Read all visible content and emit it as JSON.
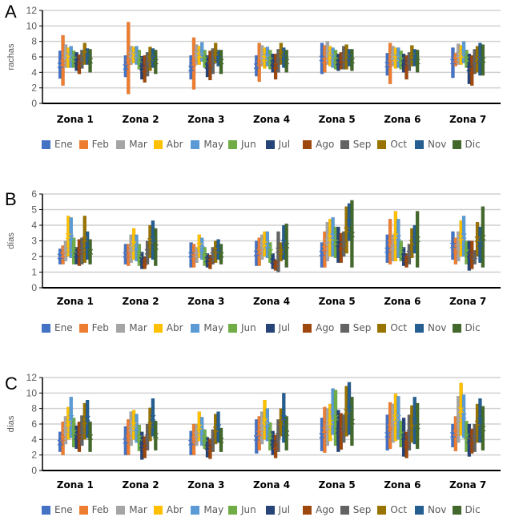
{
  "months": [
    "Ene",
    "Feb",
    "Mar",
    "Abr",
    "May",
    "Jun",
    "Jul",
    "Ago",
    "Sep",
    "Oct",
    "Nov",
    "Dic"
  ],
  "month_colors": [
    "#4472C4",
    "#ED7D31",
    "#A5A5A5",
    "#FFC000",
    "#5B9BD5",
    "#70AD47",
    "#264478",
    "#9E480E",
    "#636363",
    "#997300",
    "#255E91",
    "#43682B"
  ],
  "chart_data": [
    {
      "type": "bar",
      "subtype": "floating-range-with-mean",
      "panel_label": "A",
      "ylabel": "rachas",
      "ylim": [
        0,
        12
      ],
      "yticks": [
        0,
        2,
        4,
        6,
        8,
        10,
        12
      ],
      "grid": true,
      "legend_position": "bottom",
      "categories": [
        "Zona 1",
        "Zona 2",
        "Zona 3",
        "Zona 4",
        "Zona 5",
        "Zona 6",
        "Zona 7"
      ],
      "series": [
        {
          "name": "Ene",
          "min": [
            3.2,
            3.4,
            3.1,
            3.5,
            3.8,
            3.6,
            3.3
          ],
          "max": [
            6.8,
            6.2,
            6.2,
            6.2,
            7.8,
            6.5,
            7.2
          ],
          "mean": [
            4.9,
            4.7,
            4.5,
            4.8,
            5.8,
            5.0,
            5.4
          ]
        },
        {
          "name": "Feb",
          "min": [
            2.3,
            1.2,
            1.8,
            2.8,
            4.0,
            2.5,
            4.8
          ],
          "max": [
            8.8,
            10.5,
            8.5,
            7.8,
            7.5,
            7.8,
            6.5
          ],
          "mean": [
            5.2,
            5.3,
            5.2,
            5.2,
            5.5,
            5.2,
            5.6
          ]
        },
        {
          "name": "Mar",
          "min": [
            4.6,
            5.0,
            5.0,
            4.8,
            5.0,
            4.8,
            5.0
          ],
          "max": [
            7.6,
            7.4,
            7.6,
            7.5,
            8.0,
            7.4,
            7.7
          ],
          "mean": [
            6.2,
            6.3,
            6.4,
            6.1,
            6.5,
            6.0,
            6.3
          ]
        },
        {
          "name": "Abr",
          "min": [
            4.6,
            5.2,
            5.0,
            4.5,
            4.8,
            4.5,
            5.0
          ],
          "max": [
            7.2,
            7.3,
            7.4,
            7.2,
            7.4,
            7.2,
            7.5
          ],
          "mean": [
            5.9,
            6.2,
            6.2,
            5.8,
            6.0,
            5.8,
            6.2
          ]
        },
        {
          "name": "May",
          "min": [
            4.6,
            5.0,
            5.4,
            4.8,
            4.6,
            4.6,
            5.2
          ],
          "max": [
            7.4,
            7.4,
            7.9,
            7.3,
            7.2,
            7.2,
            8.0
          ],
          "mean": [
            6.0,
            6.2,
            6.6,
            6.0,
            5.9,
            5.9,
            6.6
          ]
        },
        {
          "name": "Jun",
          "min": [
            4.6,
            4.4,
            4.6,
            4.4,
            4.4,
            4.4,
            4.6
          ],
          "max": [
            6.8,
            6.9,
            6.9,
            6.9,
            6.9,
            6.8,
            6.9
          ],
          "mean": [
            5.7,
            5.6,
            5.7,
            5.6,
            5.6,
            5.6,
            5.7
          ]
        },
        {
          "name": "Jul",
          "min": [
            4.2,
            3.1,
            3.4,
            4.0,
            4.2,
            4.0,
            2.5
          ],
          "max": [
            6.6,
            6.1,
            6.2,
            6.4,
            6.4,
            6.4,
            6.4
          ],
          "mean": [
            5.4,
            4.6,
            4.8,
            5.2,
            5.3,
            5.2,
            4.5
          ]
        },
        {
          "name": "Ago",
          "min": [
            3.8,
            2.7,
            3.0,
            3.1,
            4.4,
            3.1,
            2.3
          ],
          "max": [
            6.3,
            6.2,
            6.8,
            6.4,
            6.6,
            6.2,
            6.2
          ],
          "mean": [
            5.0,
            4.4,
            4.9,
            4.8,
            5.5,
            4.6,
            4.2
          ]
        },
        {
          "name": "Sep",
          "min": [
            4.5,
            3.5,
            3.8,
            4.0,
            4.4,
            4.2,
            3.8
          ],
          "max": [
            6.9,
            6.6,
            7.1,
            7.0,
            7.4,
            6.6,
            7.0
          ],
          "mean": [
            5.7,
            5.0,
            5.4,
            5.5,
            5.9,
            5.4,
            5.4
          ]
        },
        {
          "name": "Oct",
          "min": [
            5.0,
            4.2,
            5.2,
            5.0,
            4.4,
            4.8,
            4.0
          ],
          "max": [
            7.8,
            7.3,
            7.8,
            7.8,
            7.6,
            7.5,
            7.4
          ],
          "mean": [
            6.4,
            5.8,
            6.5,
            6.4,
            6.0,
            6.1,
            5.7
          ]
        },
        {
          "name": "Nov",
          "min": [
            5.0,
            4.6,
            4.8,
            4.6,
            4.8,
            4.8,
            3.6
          ],
          "max": [
            7.1,
            7.1,
            6.9,
            7.2,
            7.0,
            7.0,
            7.8
          ],
          "mean": [
            6.0,
            5.8,
            5.8,
            5.9,
            5.9,
            5.9,
            5.7
          ]
        },
        {
          "name": "Dic",
          "min": [
            4.0,
            3.8,
            3.8,
            4.0,
            4.2,
            4.0,
            3.6
          ],
          "max": [
            7.0,
            6.9,
            6.9,
            6.9,
            7.0,
            6.9,
            7.6
          ],
          "mean": [
            5.5,
            5.4,
            5.4,
            5.4,
            5.5,
            5.4,
            5.6
          ]
        }
      ]
    },
    {
      "type": "bar",
      "subtype": "floating-range-with-mean",
      "panel_label": "B",
      "ylabel": "días",
      "ylim": [
        0,
        6
      ],
      "yticks": [
        0,
        1,
        2,
        3,
        4,
        5,
        6
      ],
      "grid": true,
      "legend_position": "bottom",
      "categories": [
        "Zona 1",
        "Zona 2",
        "Zona 3",
        "Zona 4",
        "Zona 5",
        "Zona 6",
        "Zona 7"
      ],
      "series": [
        {
          "name": "Ene",
          "min": [
            1.5,
            1.5,
            1.3,
            1.4,
            1.3,
            1.6,
            1.8
          ],
          "max": [
            2.5,
            2.8,
            2.9,
            3.0,
            2.9,
            3.4,
            3.6
          ],
          "mean": [
            2.0,
            2.1,
            2.1,
            2.2,
            2.2,
            2.4,
            2.7
          ]
        },
        {
          "name": "Feb",
          "min": [
            1.5,
            1.4,
            1.3,
            1.4,
            1.3,
            1.5,
            1.5
          ],
          "max": [
            2.7,
            2.8,
            2.8,
            3.2,
            3.6,
            4.4,
            3.2
          ],
          "mean": [
            2.1,
            2.1,
            2.0,
            2.3,
            2.5,
            2.9,
            2.4
          ]
        },
        {
          "name": "Mar",
          "min": [
            1.7,
            1.6,
            1.6,
            1.8,
            1.7,
            1.7,
            1.7
          ],
          "max": [
            3.0,
            3.4,
            2.6,
            3.4,
            4.2,
            3.4,
            3.6
          ],
          "mean": [
            2.4,
            2.5,
            2.1,
            2.6,
            3.0,
            2.6,
            2.6
          ]
        },
        {
          "name": "Abr",
          "min": [
            2.0,
            1.8,
            1.9,
            2.0,
            2.0,
            1.7,
            2.0
          ],
          "max": [
            4.6,
            3.8,
            3.4,
            3.6,
            4.4,
            4.9,
            4.3
          ],
          "mean": [
            3.3,
            2.8,
            2.7,
            2.8,
            3.2,
            3.3,
            3.2
          ]
        },
        {
          "name": "May",
          "min": [
            1.9,
            1.7,
            1.8,
            1.9,
            2.0,
            1.9,
            2.0
          ],
          "max": [
            4.5,
            3.4,
            3.2,
            3.6,
            4.5,
            4.4,
            4.6
          ],
          "mean": [
            3.2,
            2.6,
            2.5,
            2.7,
            3.3,
            3.2,
            3.3
          ]
        },
        {
          "name": "Jun",
          "min": [
            1.5,
            1.4,
            1.4,
            1.6,
            1.9,
            1.7,
            1.5
          ],
          "max": [
            3.2,
            2.8,
            2.6,
            2.9,
            3.9,
            3.0,
            3.0
          ],
          "mean": [
            2.4,
            2.1,
            2.0,
            2.3,
            2.9,
            2.4,
            2.3
          ]
        },
        {
          "name": "Jul",
          "min": [
            1.5,
            1.2,
            1.3,
            1.2,
            1.6,
            1.4,
            1.1
          ],
          "max": [
            2.6,
            2.3,
            2.2,
            2.2,
            3.9,
            2.6,
            3.0
          ],
          "mean": [
            2.1,
            1.8,
            1.8,
            1.7,
            2.8,
            2.0,
            2.1
          ]
        },
        {
          "name": "Ago",
          "min": [
            1.4,
            1.2,
            1.2,
            1.1,
            1.6,
            1.3,
            1.2
          ],
          "max": [
            3.1,
            2.0,
            2.1,
            1.8,
            3.5,
            2.2,
            3.0
          ],
          "mean": [
            2.3,
            1.6,
            1.7,
            1.5,
            2.6,
            1.8,
            2.1
          ]
        },
        {
          "name": "Sep",
          "min": [
            1.5,
            1.5,
            1.5,
            1.0,
            2.0,
            1.5,
            1.5
          ],
          "max": [
            3.2,
            3.0,
            2.6,
            3.6,
            3.6,
            2.8,
            2.4
          ],
          "mean": [
            2.4,
            2.3,
            2.1,
            2.4,
            2.8,
            2.2,
            2.0
          ]
        },
        {
          "name": "Oct",
          "min": [
            1.6,
            1.9,
            1.6,
            1.7,
            2.2,
            1.9,
            2.0
          ],
          "max": [
            4.6,
            4.0,
            3.0,
            2.9,
            5.2,
            3.8,
            4.2
          ],
          "mean": [
            3.1,
            3.0,
            2.4,
            2.3,
            3.7,
            2.9,
            3.1
          ]
        },
        {
          "name": "Nov",
          "min": [
            1.8,
            1.8,
            1.8,
            1.8,
            3.0,
            2.2,
            1.6
          ],
          "max": [
            3.6,
            4.3,
            3.1,
            4.0,
            5.4,
            4.0,
            3.9
          ],
          "mean": [
            2.7,
            3.1,
            2.5,
            2.9,
            4.2,
            3.1,
            2.8
          ]
        },
        {
          "name": "Dic",
          "min": [
            1.5,
            1.4,
            1.5,
            1.3,
            1.3,
            1.3,
            1.3
          ],
          "max": [
            3.1,
            3.8,
            2.8,
            4.1,
            5.6,
            4.9,
            5.2
          ],
          "mean": [
            2.3,
            2.6,
            2.1,
            2.7,
            3.4,
            3.1,
            3.2
          ]
        }
      ]
    },
    {
      "type": "bar",
      "subtype": "floating-range-with-mean",
      "panel_label": "C",
      "ylabel": "días",
      "ylim": [
        0,
        12
      ],
      "yticks": [
        0,
        2,
        4,
        6,
        8,
        10,
        12
      ],
      "grid": true,
      "legend_position": "bottom",
      "categories": [
        "Zona 1",
        "Zona 2",
        "Zona 3",
        "Zona 4",
        "Zona 5",
        "Zona 6",
        "Zona 7"
      ],
      "series": [
        {
          "name": "Ene",
          "min": [
            2.4,
            2.0,
            2.0,
            2.2,
            2.5,
            2.6,
            3.0
          ],
          "max": [
            5.0,
            5.7,
            5.1,
            6.6,
            6.8,
            7.2,
            6.0
          ],
          "mean": [
            3.6,
            3.8,
            3.6,
            4.2,
            4.5,
            4.6,
            4.6
          ]
        },
        {
          "name": "Feb",
          "min": [
            2.0,
            2.0,
            2.0,
            2.6,
            2.3,
            2.8,
            2.5
          ],
          "max": [
            6.3,
            6.6,
            6.0,
            7.0,
            8.2,
            8.8,
            7.0
          ],
          "mean": [
            4.1,
            4.2,
            4.0,
            4.8,
            5.2,
            5.6,
            4.8
          ]
        },
        {
          "name": "Mar",
          "min": [
            3.4,
            3.2,
            3.2,
            3.4,
            3.2,
            3.6,
            3.6
          ],
          "max": [
            7.0,
            7.6,
            6.0,
            7.6,
            8.0,
            8.6,
            9.6
          ],
          "mean": [
            5.2,
            5.4,
            4.6,
            5.5,
            5.6,
            6.1,
            6.6
          ]
        },
        {
          "name": "Abr",
          "min": [
            4.0,
            4.0,
            3.8,
            4.0,
            3.8,
            3.8,
            4.5
          ],
          "max": [
            8.2,
            7.8,
            7.6,
            9.1,
            8.6,
            9.9,
            11.3
          ],
          "mean": [
            6.1,
            5.9,
            5.6,
            6.4,
            6.2,
            6.8,
            7.8
          ]
        },
        {
          "name": "May",
          "min": [
            4.2,
            3.6,
            3.2,
            3.8,
            4.6,
            4.0,
            4.2
          ],
          "max": [
            9.5,
            7.3,
            6.9,
            8.0,
            10.6,
            9.6,
            9.8
          ],
          "mean": [
            6.8,
            5.4,
            5.0,
            5.9,
            7.6,
            6.8,
            7.0
          ]
        },
        {
          "name": "Jun",
          "min": [
            3.0,
            2.5,
            2.8,
            2.6,
            3.2,
            3.0,
            2.4
          ],
          "max": [
            6.8,
            5.9,
            5.3,
            6.2,
            10.4,
            6.4,
            6.4
          ],
          "mean": [
            4.9,
            4.2,
            4.1,
            4.4,
            6.8,
            4.7,
            4.4
          ]
        },
        {
          "name": "Jul",
          "min": [
            2.8,
            1.4,
            1.7,
            2.0,
            2.4,
            1.8,
            1.8
          ],
          "max": [
            5.8,
            5.0,
            4.3,
            5.1,
            7.8,
            6.8,
            6.0
          ],
          "mean": [
            4.3,
            3.2,
            3.0,
            3.6,
            5.1,
            4.3,
            3.9
          ]
        },
        {
          "name": "Ago",
          "min": [
            2.4,
            1.6,
            1.5,
            1.6,
            2.7,
            1.6,
            2.2
          ],
          "max": [
            6.3,
            4.4,
            4.1,
            4.6,
            7.4,
            5.0,
            5.4
          ],
          "mean": [
            4.3,
            3.0,
            2.8,
            3.1,
            5.0,
            3.3,
            3.8
          ]
        },
        {
          "name": "Sep",
          "min": [
            3.2,
            2.6,
            2.4,
            2.4,
            3.6,
            2.6,
            2.4
          ],
          "max": [
            7.1,
            6.0,
            5.3,
            6.6,
            7.2,
            7.2,
            6.0
          ],
          "mean": [
            5.1,
            4.3,
            3.8,
            4.5,
            5.4,
            4.9,
            4.2
          ]
        },
        {
          "name": "Oct",
          "min": [
            4.0,
            3.8,
            3.4,
            4.4,
            4.4,
            3.6,
            3.6
          ],
          "max": [
            8.7,
            8.1,
            7.3,
            8.0,
            10.9,
            8.4,
            8.6
          ],
          "mean": [
            6.3,
            5.9,
            5.3,
            6.2,
            7.6,
            6.0,
            6.1
          ]
        },
        {
          "name": "Nov",
          "min": [
            4.2,
            4.4,
            3.6,
            3.6,
            4.6,
            3.4,
            3.6
          ],
          "max": [
            9.1,
            9.3,
            7.6,
            10.0,
            11.4,
            9.5,
            9.3
          ],
          "mean": [
            6.7,
            6.8,
            5.6,
            6.8,
            8.0,
            6.4,
            6.4
          ]
        },
        {
          "name": "Dic",
          "min": [
            2.4,
            2.6,
            2.4,
            2.6,
            3.2,
            2.8,
            2.6
          ],
          "max": [
            6.3,
            6.4,
            5.5,
            7.0,
            9.5,
            8.7,
            8.3
          ],
          "mean": [
            4.3,
            4.5,
            3.9,
            4.8,
            6.3,
            5.7,
            5.4
          ]
        }
      ]
    }
  ]
}
